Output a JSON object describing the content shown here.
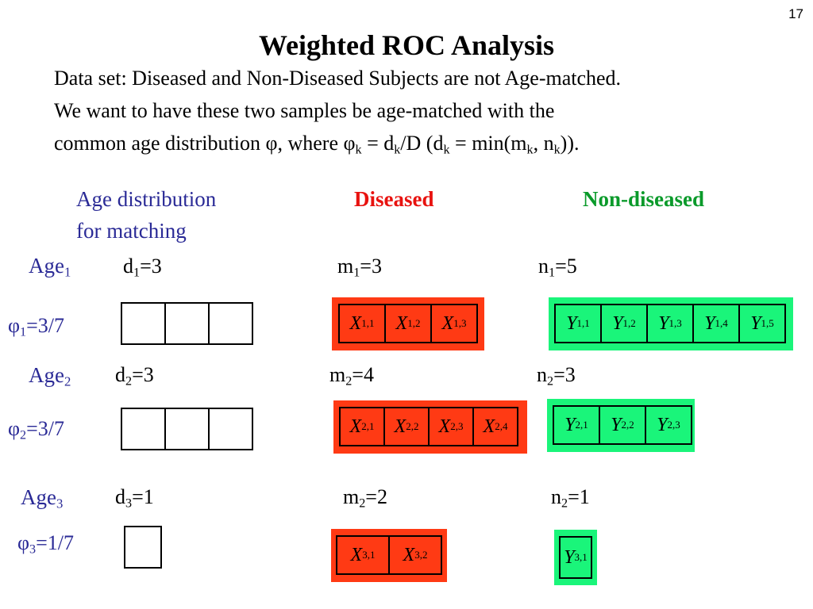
{
  "page_number": "17",
  "title": "Weighted ROC Analysis",
  "intro": {
    "line1": "Data set: Diseased and Non-Diseased Subjects are not Age-matched.",
    "line2": "We want to have these two samples be age-matched with the",
    "line3": {
      "a": "common age distribution φ, where φ",
      "sub1": "k",
      "b": " = d",
      "sub2": "k",
      "c": "/D (d",
      "sub3": "k",
      "d": " = min(m",
      "sub4": "k",
      "e": ", n",
      "sub5": "k",
      "f": "))."
    }
  },
  "headers": {
    "age_dist_line1": "Age distribution",
    "age_dist_line2": "for matching",
    "diseased": "Diseased",
    "non_diseased": "Non-diseased"
  },
  "colors": {
    "blue_text": "#2a2a96",
    "diseased_red": "#e8120f",
    "non_diseased_green": "#0a9a2a",
    "red_panel": "#ff3a14",
    "green_panel": "#1af57a"
  },
  "groups": [
    {
      "age": "Age",
      "age_sub": "1",
      "d": "d",
      "d_sub": "1",
      "d_val": "=3",
      "m": "m",
      "m_sub": "1",
      "m_val": "=3",
      "n": "n",
      "n_sub": "1",
      "n_val": "=5",
      "phi": "φ",
      "phi_sub": "1",
      "phi_val": "=3/7",
      "x_cells": [
        {
          "sym": "X",
          "sub": "1,1"
        },
        {
          "sym": "X",
          "sub": "1,2"
        },
        {
          "sym": "X",
          "sub": "1,3"
        }
      ],
      "y_cells": [
        {
          "sym": "Y",
          "sub": "1,1"
        },
        {
          "sym": "Y",
          "sub": "1,2"
        },
        {
          "sym": "Y",
          "sub": "1,3"
        },
        {
          "sym": "Y",
          "sub": "1,4"
        },
        {
          "sym": "Y",
          "sub": "1,5"
        }
      ]
    },
    {
      "age": "Age",
      "age_sub": "2",
      "d": "d",
      "d_sub": "2",
      "d_val": "=3",
      "m": "m",
      "m_sub": "2",
      "m_val": "=4",
      "n": "n",
      "n_sub": "2",
      "n_val": "=3",
      "phi": "φ",
      "phi_sub": "2",
      "phi_val": "=3/7",
      "x_cells": [
        {
          "sym": "X",
          "sub": "2,1"
        },
        {
          "sym": "X",
          "sub": "2,2"
        },
        {
          "sym": "X",
          "sub": "2,3"
        },
        {
          "sym": "X",
          "sub": "2,4"
        }
      ],
      "y_cells": [
        {
          "sym": "Y",
          "sub": "2,1"
        },
        {
          "sym": "Y",
          "sub": "2,2"
        },
        {
          "sym": "Y",
          "sub": "2,3"
        }
      ]
    },
    {
      "age": "Age",
      "age_sub": "3",
      "d": "d",
      "d_sub": "3",
      "d_val": "=1",
      "m": "m",
      "m_sub": "2",
      "m_val": "=2",
      "n": "n",
      "n_sub": "2",
      "n_val": "=1",
      "phi": "φ",
      "phi_sub": "3",
      "phi_val": "=1/7",
      "x_cells": [
        {
          "sym": "X",
          "sub": "3,1"
        },
        {
          "sym": "X",
          "sub": "3,2"
        }
      ],
      "y_cells": [
        {
          "sym": "Y",
          "sub": "3,1"
        }
      ]
    }
  ]
}
